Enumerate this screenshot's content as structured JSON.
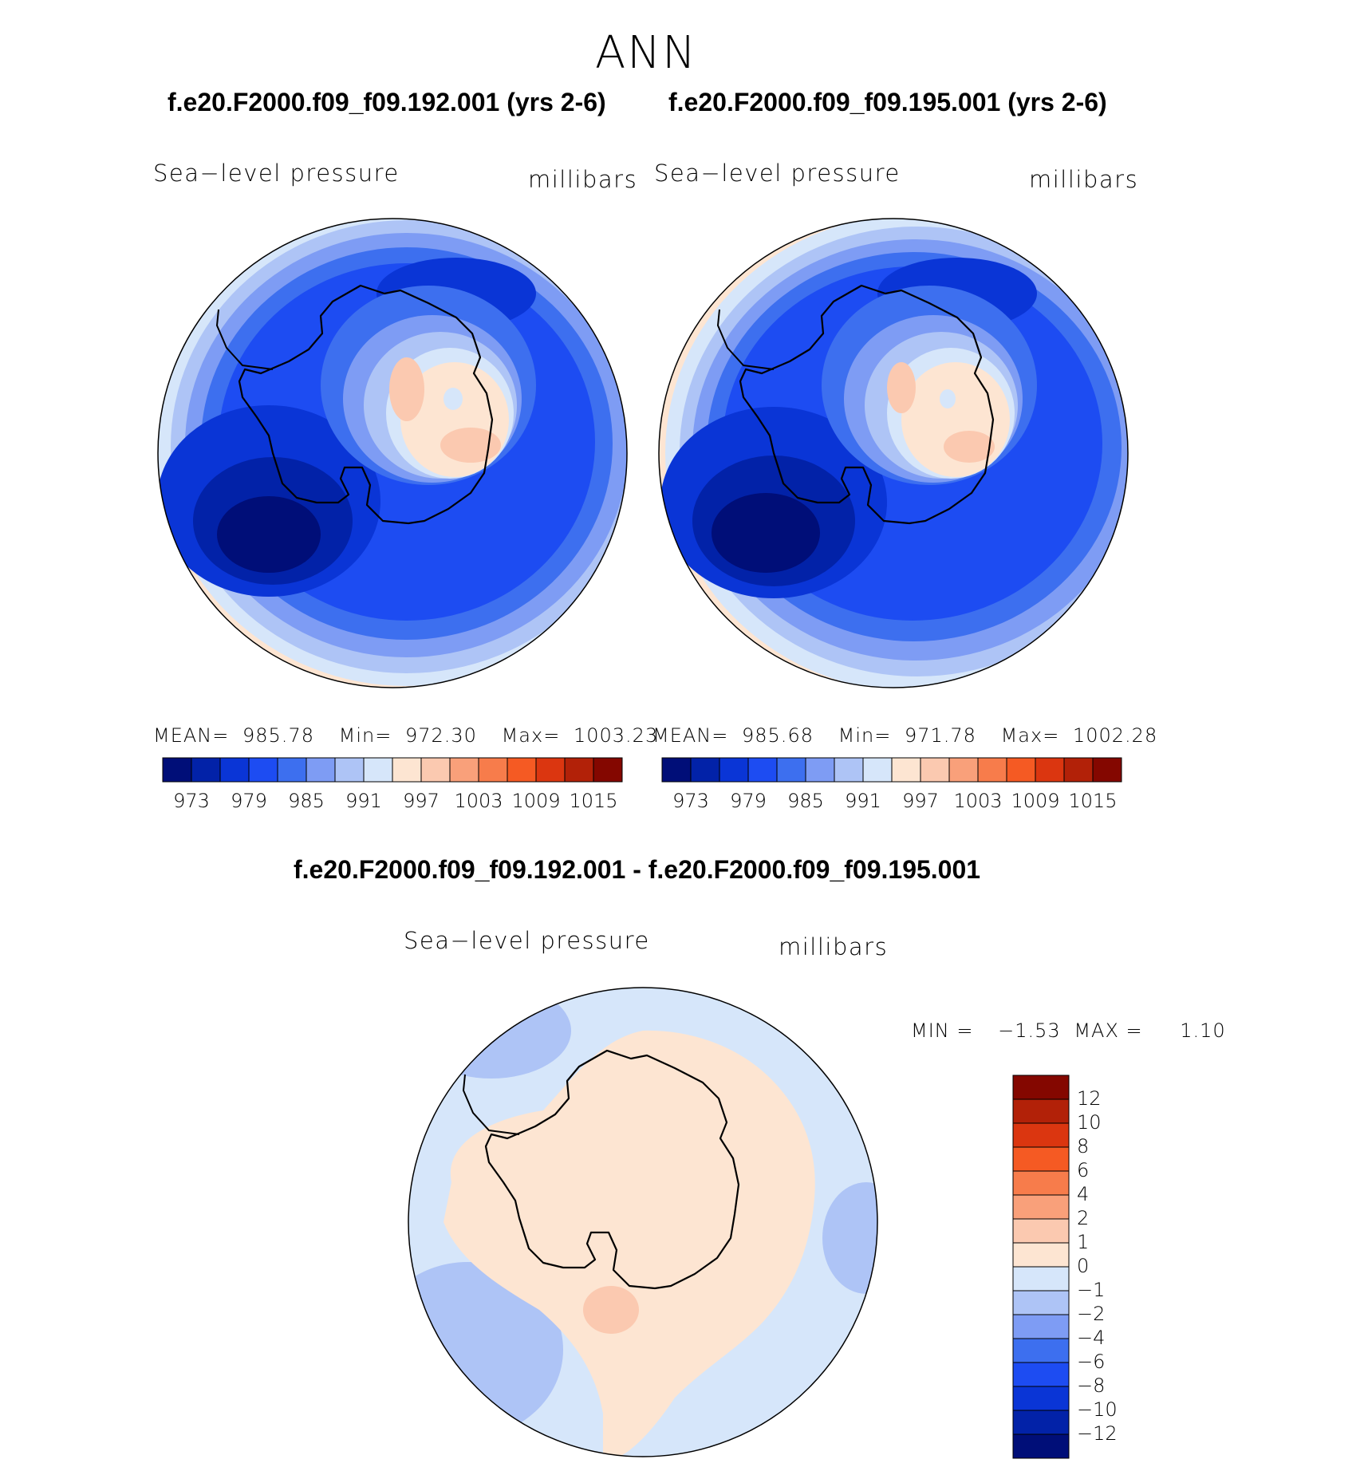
{
  "title": "ANN",
  "panels": [
    {
      "case_title": "f.e20.F2000.f09_f09.192.001 (yrs 2-6)",
      "variable_label": "Sea−level pressure",
      "units_label": "millibars",
      "stats": {
        "mean_label": "MEAN=",
        "mean": "985.78",
        "min_label": "Min=",
        "min": "972.30",
        "max_label": "Max=",
        "max": "1003.23"
      }
    },
    {
      "case_title": "f.e20.F2000.f09_f09.195.001 (yrs 2-6)",
      "variable_label": "Sea−level pressure",
      "units_label": "millibars",
      "stats": {
        "mean_label": "MEAN=",
        "mean": "985.68",
        "min_label": "Min=",
        "min": "971.78",
        "max_label": "Max=",
        "max": "1002.28"
      }
    }
  ],
  "abs_colorbar": {
    "colors": [
      "#000e78",
      "#0222a8",
      "#0a35d6",
      "#1d4cf2",
      "#3d6fef",
      "#7e9cf4",
      "#aec4f6",
      "#d6e6fa",
      "#fde5d2",
      "#fbc9b0",
      "#f9a07a",
      "#f77c4b",
      "#f55a23",
      "#db3610",
      "#b22108",
      "#840700"
    ],
    "tick_labels": [
      "973",
      "979",
      "985",
      "991",
      "997",
      "1003",
      "1009",
      "1015"
    ]
  },
  "difference": {
    "title": "f.e20.F2000.f09_f09.192.001 - f.e20.F2000.f09_f09.195.001",
    "variable_label": "Sea−level pressure",
    "units_label": "millibars",
    "minmax": {
      "min_label": "MIN =",
      "min": "−1.53",
      "max_label": "MAX =",
      "max": "1.10"
    },
    "colorbar": {
      "colors_top_to_bottom": [
        "#840700",
        "#b22108",
        "#db3610",
        "#f55a23",
        "#f77c4b",
        "#f9a07a",
        "#fbc9b0",
        "#fde5d2",
        "#d6e6fa",
        "#aec4f6",
        "#7e9cf4",
        "#3d6fef",
        "#1d4cf2",
        "#0a35d6",
        "#0222a8",
        "#000e78"
      ],
      "tick_labels_top_to_bottom": [
        "12",
        "10",
        "8",
        "6",
        "4",
        "2",
        "1",
        "0",
        "−1",
        "−2",
        "−4",
        "−6",
        "−8",
        "−10",
        "−12"
      ]
    }
  }
}
